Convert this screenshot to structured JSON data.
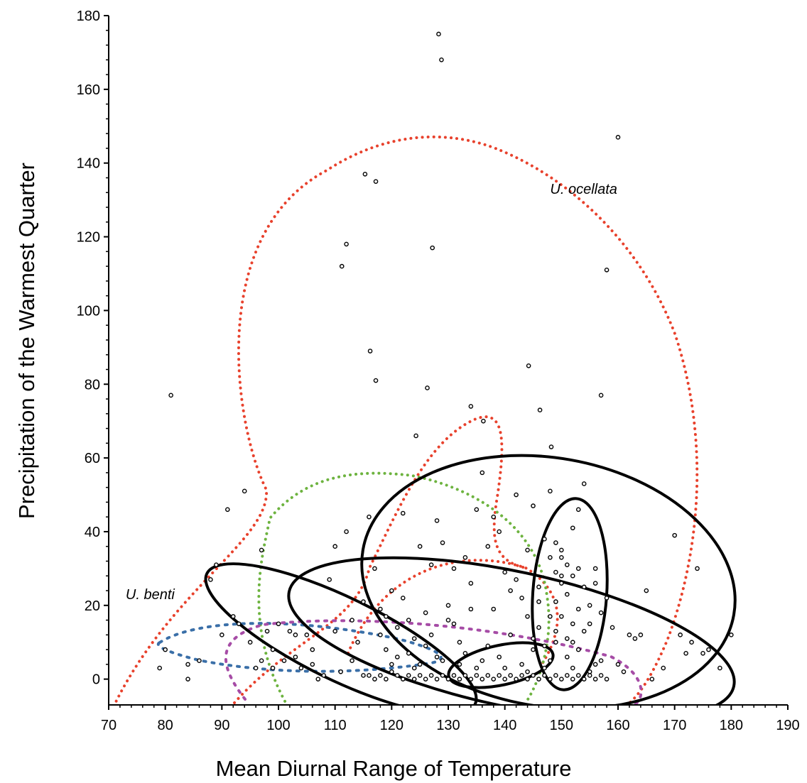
{
  "chart_data": {
    "type": "scatter",
    "title": "",
    "xlabel": "Mean Diurnal Range of Temperature",
    "ylabel": "Precipitation of the Warmest Quarter",
    "xlim": [
      70,
      190
    ],
    "ylim": [
      -7,
      180
    ],
    "xticks": [
      70,
      80,
      90,
      100,
      110,
      120,
      130,
      140,
      150,
      160,
      170,
      180,
      190
    ],
    "yticks": [
      0,
      20,
      40,
      60,
      80,
      100,
      120,
      140,
      160,
      180
    ],
    "grid": false,
    "legend": "none",
    "annotations": [
      {
        "text": "U. ocellata",
        "x": 148,
        "y": 133
      },
      {
        "text": "U. benti",
        "x": 73,
        "y": 23
      }
    ],
    "colors": {
      "points": "#000000",
      "black_ellipses": "#000000",
      "red_dotted": "#e8412c",
      "green_dotted": "#6db33f",
      "blue_dotted": "#3a6fa8",
      "purple_dotted": "#a64ca6"
    },
    "series": [
      {
        "points": [
          [
            81,
            77
          ],
          [
            128.3,
            175
          ],
          [
            128.8,
            168
          ],
          [
            160,
            147
          ],
          [
            115.3,
            137
          ],
          [
            117.2,
            135
          ],
          [
            112,
            118
          ],
          [
            111.2,
            112
          ],
          [
            127.2,
            117
          ],
          [
            158,
            111
          ],
          [
            116.2,
            89
          ],
          [
            117.2,
            81
          ],
          [
            126.3,
            79
          ],
          [
            144.2,
            85
          ],
          [
            146.2,
            73
          ],
          [
            157,
            77
          ],
          [
            134,
            74
          ],
          [
            136.2,
            70
          ],
          [
            124.3,
            66
          ],
          [
            148.2,
            63
          ],
          [
            91,
            46
          ],
          [
            94,
            51
          ],
          [
            97,
            35
          ],
          [
            89,
            31
          ],
          [
            88,
            27
          ],
          [
            92,
            17
          ],
          [
            93,
            15
          ],
          [
            79,
            3
          ],
          [
            80,
            8
          ],
          [
            84,
            4
          ],
          [
            84,
            0
          ],
          [
            86,
            5
          ],
          [
            90,
            12
          ],
          [
            95,
            10
          ],
          [
            96,
            3
          ],
          [
            97,
            5
          ],
          [
            99,
            8
          ],
          [
            99,
            3
          ],
          [
            100,
            15
          ],
          [
            102,
            13
          ],
          [
            103,
            6
          ],
          [
            105,
            12
          ],
          [
            106,
            8
          ],
          [
            107,
            0
          ],
          [
            108,
            1
          ],
          [
            110,
            36
          ],
          [
            111,
            2
          ],
          [
            112,
            40
          ],
          [
            113,
            16
          ],
          [
            114,
            10
          ],
          [
            115,
            21
          ],
          [
            116,
            44
          ],
          [
            117,
            30
          ],
          [
            118,
            12
          ],
          [
            119,
            17
          ],
          [
            120,
            24
          ],
          [
            121,
            6
          ],
          [
            122,
            45
          ],
          [
            123,
            16
          ],
          [
            124,
            11
          ],
          [
            125,
            36
          ],
          [
            126,
            9
          ],
          [
            127,
            31
          ],
          [
            128,
            43
          ],
          [
            129,
            37
          ],
          [
            130,
            20
          ],
          [
            131,
            30
          ],
          [
            132,
            10
          ],
          [
            133,
            33
          ],
          [
            134,
            19
          ],
          [
            135,
            46
          ],
          [
            136,
            56
          ],
          [
            137,
            36
          ],
          [
            138,
            44
          ],
          [
            139,
            40
          ],
          [
            140,
            29
          ],
          [
            141,
            24
          ],
          [
            142,
            50
          ],
          [
            143,
            22
          ],
          [
            144,
            35
          ],
          [
            145,
            47
          ],
          [
            146,
            14
          ],
          [
            147,
            38
          ],
          [
            148,
            51
          ],
          [
            149,
            37
          ],
          [
            150,
            33
          ],
          [
            151,
            23
          ],
          [
            152,
            41
          ],
          [
            153,
            46
          ],
          [
            154,
            53
          ],
          [
            155,
            20
          ],
          [
            156,
            30
          ],
          [
            157,
            18
          ],
          [
            158,
            22
          ],
          [
            159,
            14
          ],
          [
            160,
            4
          ],
          [
            161,
            2
          ],
          [
            162,
            12
          ],
          [
            163,
            11
          ],
          [
            164,
            12
          ],
          [
            165,
            24
          ],
          [
            166,
            0
          ],
          [
            168,
            3
          ],
          [
            170,
            39
          ],
          [
            171,
            12
          ],
          [
            172,
            7
          ],
          [
            173,
            10
          ],
          [
            174,
            30
          ],
          [
            175,
            7
          ],
          [
            176,
            8
          ],
          [
            178,
            3
          ],
          [
            180,
            12
          ],
          [
            115,
            1
          ],
          [
            116,
            1
          ],
          [
            117,
            0
          ],
          [
            118,
            1
          ],
          [
            119,
            0
          ],
          [
            120,
            2
          ],
          [
            121,
            1
          ],
          [
            122,
            0
          ],
          [
            123,
            1
          ],
          [
            124,
            0
          ],
          [
            125,
            1
          ],
          [
            126,
            0
          ],
          [
            127,
            1
          ],
          [
            128,
            0
          ],
          [
            129,
            1
          ],
          [
            130,
            0
          ],
          [
            131,
            1
          ],
          [
            132,
            0
          ],
          [
            133,
            1
          ],
          [
            134,
            0
          ],
          [
            135,
            1
          ],
          [
            136,
            0
          ],
          [
            137,
            1
          ],
          [
            138,
            0
          ],
          [
            139,
            1
          ],
          [
            140,
            0
          ],
          [
            141,
            1
          ],
          [
            142,
            0
          ],
          [
            143,
            1
          ],
          [
            144,
            0
          ],
          [
            145,
            1
          ],
          [
            146,
            0
          ],
          [
            147,
            1
          ],
          [
            148,
            0
          ],
          [
            149,
            1
          ],
          [
            150,
            0
          ],
          [
            151,
            1
          ],
          [
            152,
            0
          ],
          [
            153,
            1
          ],
          [
            154,
            0
          ],
          [
            155,
            1
          ],
          [
            156,
            0
          ],
          [
            157,
            1
          ],
          [
            158,
            0
          ],
          [
            119,
            8
          ],
          [
            121,
            14
          ],
          [
            123,
            7
          ],
          [
            125,
            4
          ],
          [
            127,
            12
          ],
          [
            129,
            5
          ],
          [
            131,
            15
          ],
          [
            133,
            7
          ],
          [
            135,
            3
          ],
          [
            137,
            9
          ],
          [
            139,
            6
          ],
          [
            141,
            12
          ],
          [
            143,
            4
          ],
          [
            145,
            8
          ],
          [
            147,
            3
          ],
          [
            149,
            10
          ],
          [
            151,
            6
          ],
          [
            153,
            8
          ],
          [
            155,
            2
          ],
          [
            157,
            5
          ],
          [
            120,
            4
          ],
          [
            124,
            3
          ],
          [
            128,
            6
          ],
          [
            132,
            4
          ],
          [
            136,
            5
          ],
          [
            140,
            3
          ],
          [
            144,
            2
          ],
          [
            148,
            5
          ],
          [
            152,
            3
          ],
          [
            156,
            4
          ],
          [
            118,
            19
          ],
          [
            122,
            22
          ],
          [
            126,
            18
          ],
          [
            130,
            16
          ],
          [
            134,
            26
          ],
          [
            138,
            19
          ],
          [
            142,
            27
          ],
          [
            146,
            25
          ],
          [
            150,
            28
          ],
          [
            154,
            25
          ],
          [
            156,
            26
          ],
          [
            144,
            17
          ],
          [
            146,
            21
          ],
          [
            148,
            17
          ],
          [
            150,
            17
          ],
          [
            152,
            15
          ],
          [
            154,
            13
          ],
          [
            145,
            11
          ],
          [
            147,
            9
          ],
          [
            149,
            13
          ],
          [
            151,
            11
          ],
          [
            153,
            19
          ],
          [
            148,
            33
          ],
          [
            149,
            29
          ],
          [
            150,
            35
          ],
          [
            151,
            31
          ],
          [
            150,
            26
          ],
          [
            152,
            28
          ],
          [
            153,
            30
          ],
          [
            149,
            21
          ],
          [
            155,
            15
          ],
          [
            152,
            10
          ],
          [
            110,
            13
          ],
          [
            113,
            5
          ],
          [
            109,
            27
          ],
          [
            106,
            4
          ],
          [
            103,
            12
          ],
          [
            101,
            5
          ],
          [
            98,
            13
          ],
          [
            104,
            3
          ]
        ]
      }
    ]
  }
}
